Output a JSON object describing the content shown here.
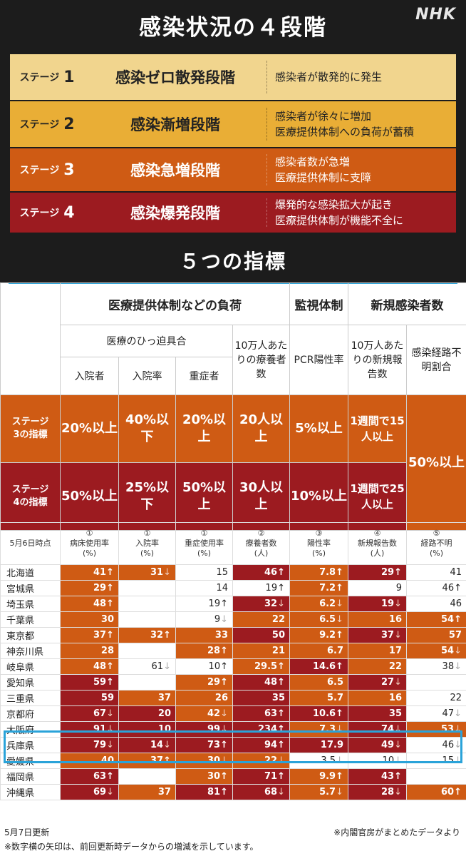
{
  "header": {
    "title": "感染状況の４段階",
    "logo": "NHK"
  },
  "stages": [
    {
      "label": "ステージ",
      "num": "1",
      "name": "感染ゼロ散発段階",
      "desc": [
        "感染者が散発的に発生"
      ]
    },
    {
      "label": "ステージ",
      "num": "2",
      "name": "感染漸増段階",
      "desc": [
        "感染者が徐々に増加",
        "医療提供体制への負荷が蓄積"
      ]
    },
    {
      "label": "ステージ",
      "num": "3",
      "name": "感染急増段階",
      "desc": [
        "感染者数が急増",
        "医療提供体制に支障"
      ]
    },
    {
      "label": "ステージ",
      "num": "4",
      "name": "感染爆発段階",
      "desc": [
        "爆発的な感染拡大が起き",
        "医療提供体制が機能不全に"
      ]
    }
  ],
  "indicators": {
    "title": "５つの指標",
    "group1": "医療提供体制などの負荷",
    "group2": "監視体制",
    "group3": "新規感染者数",
    "subgroup1": "医療のひっ迫具合",
    "col_100k_a": "10万人あたりの療養者数",
    "col_pcr_a": "PCR陽性率",
    "col_new_a": "10万人あたりの新規報告数",
    "col_unknown_a": "感染経路不明割合",
    "col_hosp": "入院者",
    "col_rate": "入院率",
    "col_severe": "重症者",
    "stage3_label": [
      "ステージ",
      "3の指標"
    ],
    "stage4_label": [
      "ステージ",
      "4の指標"
    ],
    "stage3": [
      "20%以上",
      "40%以下",
      "20%以上",
      "20人以上",
      "5%以上",
      "1週間で15人以上"
    ],
    "stage4": [
      "50%以上",
      "25%以下",
      "50%以上",
      "30人以上",
      "10%以上",
      "1週間で25人以上"
    ],
    "unknown_threshold": "50%以上"
  },
  "data_header": {
    "date": "5月6日時点",
    "cols": [
      {
        "num": "①",
        "name": "病床使用率",
        "unit": "(%)"
      },
      {
        "num": "①",
        "name": "入院率",
        "unit": "(%)"
      },
      {
        "num": "①",
        "name": "重症使用率",
        "unit": "(%)"
      },
      {
        "num": "②",
        "name": "療養者数",
        "unit": "(人)"
      },
      {
        "num": "③",
        "name": "陽性率",
        "unit": "(%)"
      },
      {
        "num": "④",
        "name": "新規報告数",
        "unit": "(人)"
      },
      {
        "num": "⑤",
        "name": "経路不明",
        "unit": "(%)"
      }
    ]
  },
  "colors": {
    "dark_red": "#9c1b20",
    "orange": "#cf5b14",
    "white": "#ffffff",
    "highlight": "#2aa3d9"
  },
  "rows": [
    {
      "pref": "北海道",
      "cells": [
        [
          "41",
          "↑",
          "or"
        ],
        [
          "31",
          "↓",
          "or"
        ],
        [
          "15",
          "",
          "w"
        ],
        [
          "46",
          "↑",
          "dr"
        ],
        [
          "7.8",
          "↑",
          "or"
        ],
        [
          "29",
          "↑",
          "dr"
        ],
        [
          "41",
          "",
          "w"
        ]
      ]
    },
    {
      "pref": "宮城県",
      "cells": [
        [
          "29",
          "↑",
          "or"
        ],
        [
          "",
          "",
          "w"
        ],
        [
          "14",
          "",
          "w"
        ],
        [
          "19",
          "↑",
          "w"
        ],
        [
          "7.2",
          "↑",
          "or"
        ],
        [
          "9",
          "",
          "w"
        ],
        [
          "46",
          "↑",
          "w"
        ]
      ]
    },
    {
      "pref": "埼玉県",
      "cells": [
        [
          "48",
          "↑",
          "or"
        ],
        [
          "",
          "",
          "w"
        ],
        [
          "19",
          "↑",
          "w"
        ],
        [
          "32",
          "↓",
          "dr"
        ],
        [
          "6.2",
          "↓",
          "or"
        ],
        [
          "19",
          "↓",
          "dr"
        ],
        [
          "46",
          "",
          "w"
        ]
      ]
    },
    {
      "pref": "千葉県",
      "cells": [
        [
          "30",
          "",
          "or"
        ],
        [
          "",
          "",
          "w"
        ],
        [
          "9",
          "↓",
          "w"
        ],
        [
          "22",
          "",
          "or"
        ],
        [
          "6.5",
          "↓",
          "or"
        ],
        [
          "16",
          "",
          "or"
        ],
        [
          "54",
          "↑",
          "or"
        ]
      ]
    },
    {
      "pref": "東京都",
      "cells": [
        [
          "37",
          "↑",
          "or"
        ],
        [
          "32",
          "↑",
          "or"
        ],
        [
          "33",
          "",
          "or"
        ],
        [
          "50",
          "",
          "dr"
        ],
        [
          "9.2",
          "↑",
          "or"
        ],
        [
          "37",
          "↓",
          "dr"
        ],
        [
          "57",
          "",
          "or"
        ]
      ]
    },
    {
      "pref": "神奈川県",
      "cells": [
        [
          "28",
          "",
          "or"
        ],
        [
          "",
          "",
          "w"
        ],
        [
          "28",
          "↑",
          "or"
        ],
        [
          "21",
          "",
          "or"
        ],
        [
          "6.7",
          "",
          "or"
        ],
        [
          "17",
          "",
          "or"
        ],
        [
          "54",
          "↓",
          "or"
        ]
      ]
    },
    {
      "pref": "岐阜県",
      "cells": [
        [
          "48",
          "↑",
          "or"
        ],
        [
          "61",
          "↓",
          "w"
        ],
        [
          "10",
          "↑",
          "w"
        ],
        [
          "29.5",
          "↑",
          "or"
        ],
        [
          "14.6",
          "↑",
          "dr"
        ],
        [
          "22",
          "",
          "or"
        ],
        [
          "38",
          "↓",
          "w"
        ]
      ]
    },
    {
      "pref": "愛知県",
      "cells": [
        [
          "59",
          "↑",
          "dr"
        ],
        [
          "",
          "",
          "w"
        ],
        [
          "29",
          "↑",
          "or"
        ],
        [
          "48",
          "↑",
          "dr"
        ],
        [
          "6.5",
          "",
          "or"
        ],
        [
          "27",
          "↓",
          "dr"
        ],
        [
          "",
          "",
          "w"
        ]
      ]
    },
    {
      "pref": "三重県",
      "cells": [
        [
          "59",
          "",
          "dr"
        ],
        [
          "37",
          "",
          "or"
        ],
        [
          "26",
          "",
          "or"
        ],
        [
          "35",
          "",
          "dr"
        ],
        [
          "5.7",
          "",
          "or"
        ],
        [
          "16",
          "",
          "or"
        ],
        [
          "22",
          "",
          "w"
        ]
      ]
    },
    {
      "pref": "京都府",
      "cells": [
        [
          "67",
          "↓",
          "dr"
        ],
        [
          "20",
          "",
          "dr"
        ],
        [
          "42",
          "↓",
          "or"
        ],
        [
          "63",
          "↑",
          "dr"
        ],
        [
          "10.6",
          "↑",
          "dr"
        ],
        [
          "35",
          "",
          "dr"
        ],
        [
          "47",
          "↓",
          "w"
        ]
      ]
    },
    {
      "pref": "大阪府",
      "cells": [
        [
          "91",
          "↓",
          "dr"
        ],
        [
          "10",
          "",
          "dr"
        ],
        [
          "99",
          "↓",
          "dr"
        ],
        [
          "234",
          "↑",
          "dr"
        ],
        [
          "7.3",
          "↓",
          "or"
        ],
        [
          "74",
          "↓",
          "dr"
        ],
        [
          "53",
          "↓",
          "or"
        ]
      ]
    },
    {
      "pref": "兵庫県",
      "cells": [
        [
          "79",
          "↓",
          "dr"
        ],
        [
          "14",
          "↓",
          "dr"
        ],
        [
          "73",
          "↑",
          "dr"
        ],
        [
          "94",
          "↑",
          "dr"
        ],
        [
          "17.9",
          "",
          "dr"
        ],
        [
          "49",
          "↓",
          "dr"
        ],
        [
          "46",
          "↓",
          "w"
        ]
      ]
    },
    {
      "pref": "愛媛県",
      "cells": [
        [
          "40",
          "",
          "or"
        ],
        [
          "37",
          "↑",
          "or"
        ],
        [
          "30",
          "↓",
          "or"
        ],
        [
          "22",
          "↓",
          "or"
        ],
        [
          "3.5",
          "↓",
          "w"
        ],
        [
          "10",
          "↓",
          "w"
        ],
        [
          "15",
          "↓",
          "w"
        ]
      ]
    },
    {
      "pref": "福岡県",
      "cells": [
        [
          "63",
          "↑",
          "dr"
        ],
        [
          "",
          "",
          "w"
        ],
        [
          "30",
          "↑",
          "or"
        ],
        [
          "71",
          "↑",
          "dr"
        ],
        [
          "9.9",
          "↑",
          "or"
        ],
        [
          "43",
          "↑",
          "dr"
        ],
        [
          "",
          "",
          "w"
        ]
      ]
    },
    {
      "pref": "沖縄県",
      "cells": [
        [
          "69",
          "↓",
          "dr"
        ],
        [
          "37",
          "",
          "or"
        ],
        [
          "81",
          "↑",
          "dr"
        ],
        [
          "68",
          "↓",
          "dr"
        ],
        [
          "5.7",
          "↓",
          "or"
        ],
        [
          "28",
          "↓",
          "dr"
        ],
        [
          "60",
          "↑",
          "or"
        ]
      ]
    }
  ],
  "footer": {
    "updated": "5月7日更新",
    "source": "※内閣官房がまとめたデータより",
    "note": "※数字横の矢印は、前回更新時データからの増減を示しています。"
  }
}
